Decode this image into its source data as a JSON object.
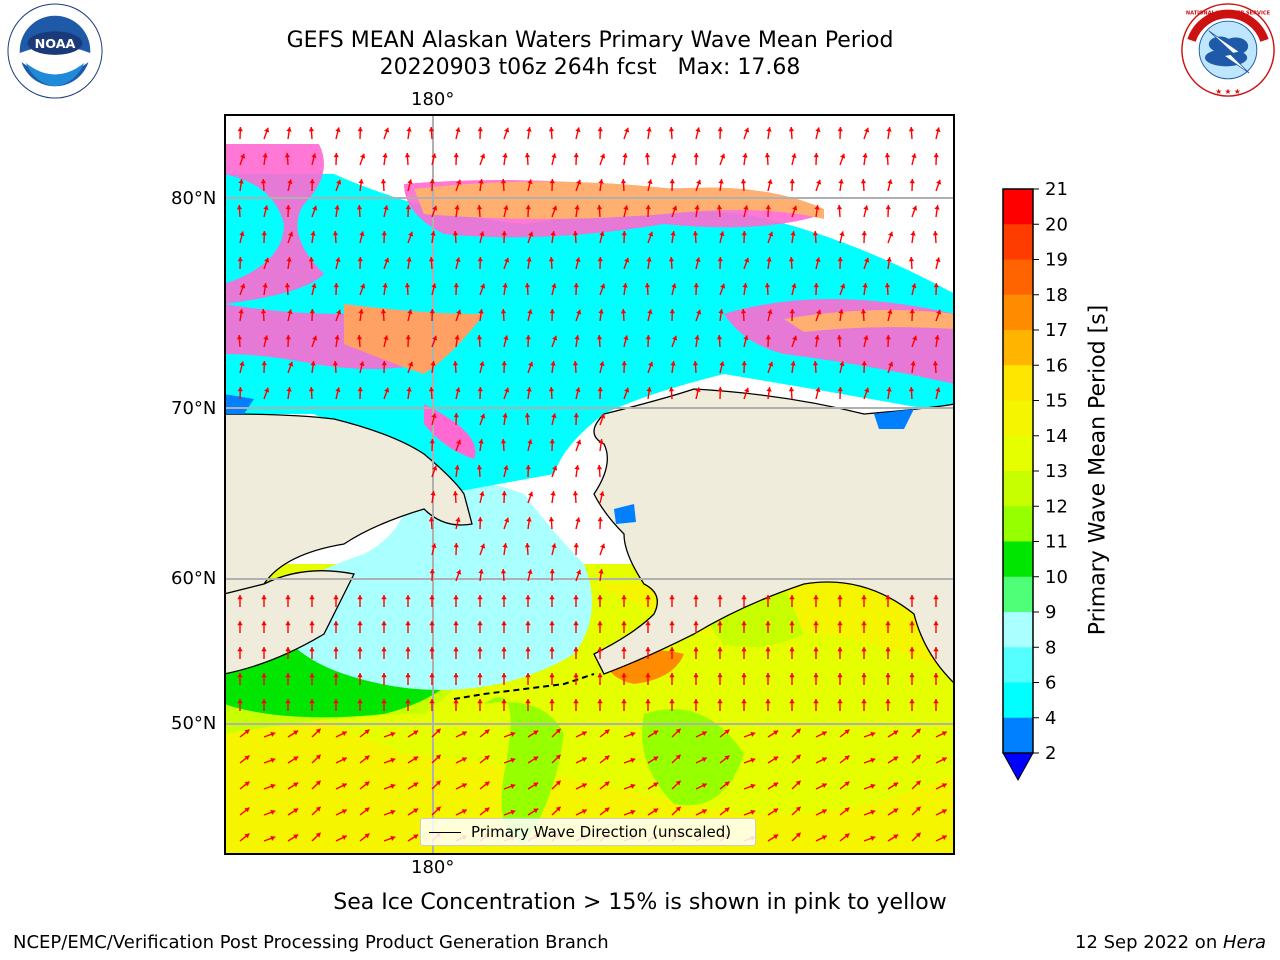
{
  "title": {
    "line1": "GEFS MEAN Alaskan Waters Primary Wave Mean Period",
    "line2": "20220903 t06z 264h fcst   Max: 17.68"
  },
  "map": {
    "lon_label_top": "180°",
    "lon_label_bottom": "180°",
    "lat_labels": [
      "80°N",
      "70°N",
      "60°N",
      "50°N"
    ],
    "legend": "Primary Wave Direction (unscaled)",
    "arrow_color": "#ff0000",
    "land_color": "#efecdc",
    "grid_color": "#b0b0b0"
  },
  "colorbar": {
    "label": "Primary Wave Mean Period [s]",
    "ticks": [
      "21",
      "20",
      "19",
      "18",
      "17",
      "16",
      "15",
      "14",
      "13",
      "12",
      "11",
      "10",
      "9",
      "8",
      "6",
      "4",
      "2"
    ],
    "colors_top_to_bottom": [
      "#ff0000",
      "#ff3c00",
      "#ff6400",
      "#ff8c00",
      "#ffb400",
      "#ffe600",
      "#f5f500",
      "#e6ff00",
      "#c8ff00",
      "#96ff00",
      "#00e600",
      "#50ff78",
      "#aaffff",
      "#55ffff",
      "#00ffff",
      "#0080ff"
    ],
    "extend_color": "#0000ff"
  },
  "caption": "Sea Ice Concentration > 15% is shown in pink to yellow",
  "footer": {
    "left": "NCEP/EMC/Verification Post Processing Product Generation Branch",
    "date": "12 Sep 2022 on ",
    "machine": "Hera"
  },
  "logos": {
    "noaa_text": "NOAA",
    "nws_text": "NATIONAL WEATHER SERVICE"
  }
}
